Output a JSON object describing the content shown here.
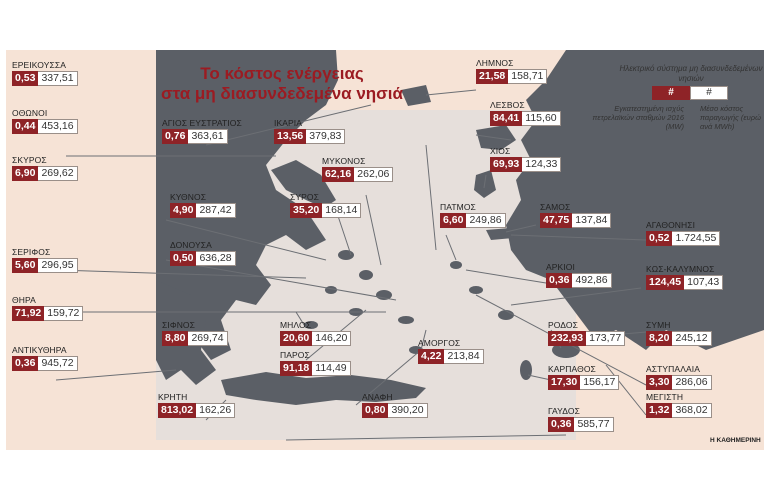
{
  "title": {
    "line1": "Το κόστος ενέργειας",
    "line2": "στα μη διασυνδεδεμένα νησιά"
  },
  "legend": {
    "title": "Ηλεκτρικό σύστημα μη διασυνδεδεμένων νησιών",
    "symbol_power": "#",
    "symbol_cost": "#",
    "power_label": "Εγκατεστημένη ισχύς πετρελαϊκών σταθμών 2016 (MW)",
    "cost_label": "Μέσο κόστος παραγωγής (ευρώ ανά MWh)"
  },
  "credit": "Η ΚΑΘΗΜΕΡΙΝΗ",
  "colors": {
    "accent": "#8e2327",
    "title": "#9b1b22",
    "panel_bg": "#f6e3d6",
    "land": "#5b5f66",
    "sea": "#cfd6db"
  },
  "islands": [
    {
      "name": "ΕΡΕΙΚΟΥΣΣΑ",
      "power": "0,53",
      "cost": "337,51"
    },
    {
      "name": "ΟΘΩΝΟΙ",
      "power": "0,44",
      "cost": "453,16"
    },
    {
      "name": "ΣΚΥΡΟΣ",
      "power": "6,90",
      "cost": "269,62"
    },
    {
      "name": "ΚΥΘΝΟΣ",
      "power": "4,90",
      "cost": "287,42"
    },
    {
      "name": "ΔΟΝΟΥΣΑ",
      "power": "0,50",
      "cost": "636,28"
    },
    {
      "name": "ΣΕΡΙΦΟΣ",
      "power": "5,60",
      "cost": "296,95"
    },
    {
      "name": "ΘΗΡΑ",
      "power": "71,92",
      "cost": "159,72"
    },
    {
      "name": "ΣΙΦΝΟΣ",
      "power": "8,80",
      "cost": "269,74"
    },
    {
      "name": "ΑΝΤΙΚΥΘΗΡΑ",
      "power": "0,36",
      "cost": "945,72"
    },
    {
      "name": "ΚΡΗΤΗ",
      "power": "813,02",
      "cost": "162,26"
    },
    {
      "name": "ΑΓΙΟΣ ΕΥΣΤΡΑΤΙΟΣ",
      "power": "0,76",
      "cost": "363,61"
    },
    {
      "name": "ΙΚΑΡΙΑ",
      "power": "13,56",
      "cost": "379,83"
    },
    {
      "name": "ΜΥΚΟΝΟΣ",
      "power": "62,16",
      "cost": "262,06"
    },
    {
      "name": "ΣΥΡΟΣ",
      "power": "35,20",
      "cost": "168,14"
    },
    {
      "name": "ΜΗΛΟΣ",
      "power": "20,60",
      "cost": "146,20"
    },
    {
      "name": "ΠΑΡΟΣ",
      "power": "91,18",
      "cost": "114,49"
    },
    {
      "name": "ΑΝΑΦΗ",
      "power": "0,80",
      "cost": "390,20"
    },
    {
      "name": "ΑΜΟΡΓΟΣ",
      "power": "4,22",
      "cost": "213,84"
    },
    {
      "name": "ΛΗΜΝΟΣ",
      "power": "21,58",
      "cost": "158,71"
    },
    {
      "name": "ΛΕΣΒΟΣ",
      "power": "84,41",
      "cost": "115,60"
    },
    {
      "name": "ΧΙΟΣ",
      "power": "69,93",
      "cost": "124,33"
    },
    {
      "name": "ΠΑΤΜΟΣ",
      "power": "6,60",
      "cost": "249,86"
    },
    {
      "name": "ΣΑΜΟΣ",
      "power": "47,75",
      "cost": "137,84"
    },
    {
      "name": "ΑΡΚΙΟΙ",
      "power": "0,36",
      "cost": "492,86"
    },
    {
      "name": "ΡΟΔΟΣ",
      "power": "232,93",
      "cost": "173,77"
    },
    {
      "name": "ΚΑΡΠΑΘΟΣ",
      "power": "17,30",
      "cost": "156,17"
    },
    {
      "name": "ΓΑΥΔΟΣ",
      "power": "0,36",
      "cost": "585,77"
    },
    {
      "name": "ΑΓΑΘΟΝΗΣΙ",
      "power": "0,52",
      "cost": "1.724,55"
    },
    {
      "name": "ΚΩΣ-ΚΑΛΥΜΝΟΣ",
      "power": "124,45",
      "cost": "107,43"
    },
    {
      "name": "ΣΥΜΗ",
      "power": "8,20",
      "cost": "245,12"
    },
    {
      "name": "ΑΣΤΥΠΑΛΑΙΑ",
      "power": "3,30",
      "cost": "286,06"
    },
    {
      "name": "ΜΕΓΙΣΤΗ",
      "power": "1,32",
      "cost": "368,02"
    }
  ]
}
